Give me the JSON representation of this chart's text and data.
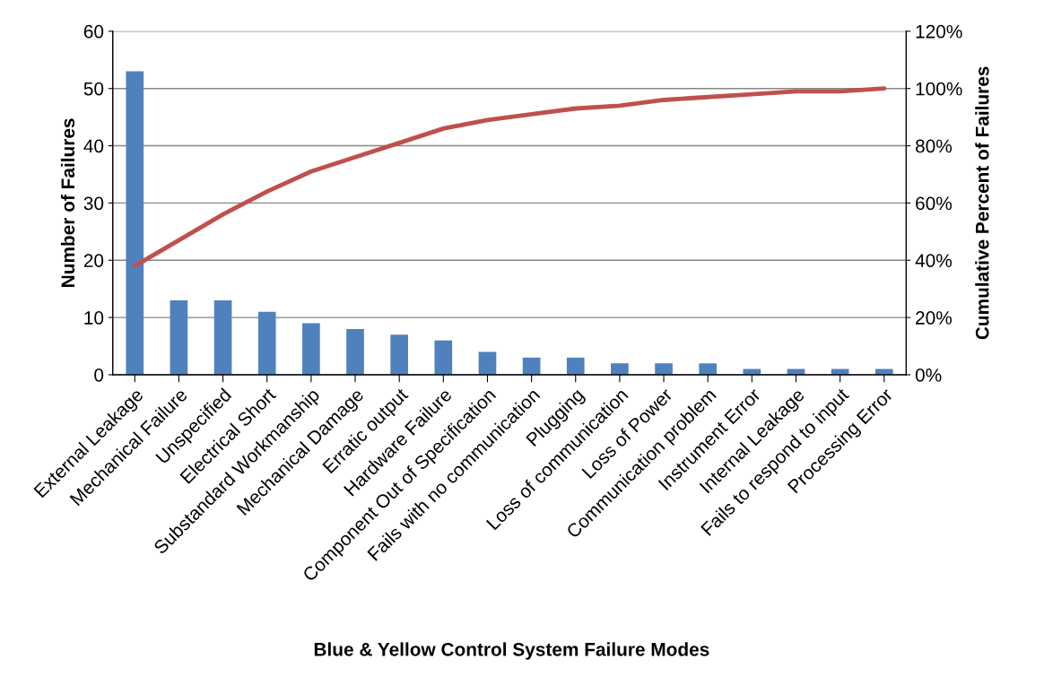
{
  "chart_data": {
    "type": "bar",
    "xlabel": "Blue & Yellow Control System Failure Modes",
    "ylabel": "Number of Failures",
    "y2label": "Cumulative Percent of Failures",
    "categories": [
      "External Leakage",
      "Mechanical Failure",
      "Unspecified",
      "Electrical Short",
      "Substandard Workmanship",
      "Mechanical Damage",
      "Erratic output",
      "Hardware Failure",
      "Component Out of Specification",
      "Fails with no communication",
      "Plugging",
      "Loss of communication",
      "Loss of Power",
      "Communication problem",
      "Instrument Error",
      "Internal Leakage",
      "Fails to respond to input",
      "Processing Error"
    ],
    "series": [
      {
        "color": "#4f81bd",
        "values": [
          53,
          13,
          13,
          11,
          9,
          8,
          7,
          6,
          4,
          3,
          3,
          2,
          2,
          2,
          1,
          1,
          1,
          1
        ]
      },
      {
        "type": "line",
        "axis": "y2",
        "color": "#c0504d",
        "line_style": "solid",
        "values": [
          38,
          47,
          56,
          64,
          71,
          76,
          81,
          86,
          89,
          91,
          93,
          94,
          96,
          97,
          98,
          99,
          99,
          100
        ]
      }
    ],
    "ylim": [
      0,
      60
    ],
    "yticks": [
      0,
      10,
      20,
      30,
      40,
      50,
      60
    ],
    "y2lim": [
      0,
      120
    ],
    "y2ticks": [
      {
        "value": 0,
        "label": "0%"
      },
      {
        "value": 20,
        "label": "20%"
      },
      {
        "value": 40,
        "label": "40%"
      },
      {
        "value": 60,
        "label": "60%"
      },
      {
        "value": 80,
        "label": "80%"
      },
      {
        "value": 100,
        "label": "100%"
      },
      {
        "value": 120,
        "label": "120%"
      }
    ],
    "grid": "y",
    "marker": "none",
    "legend": false
  }
}
